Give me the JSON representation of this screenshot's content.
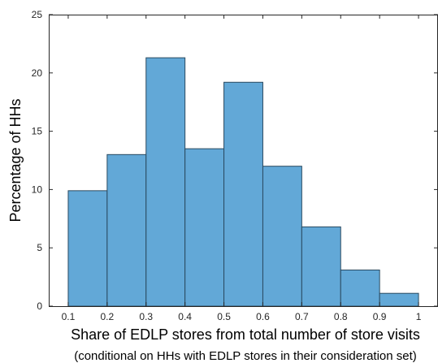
{
  "chart_data": {
    "type": "bar",
    "subtype": "histogram",
    "bin_edges": [
      0.1,
      0.2,
      0.3,
      0.4,
      0.5,
      0.6,
      0.7,
      0.8,
      0.9,
      1.0
    ],
    "values": [
      9.9,
      13.0,
      21.3,
      13.5,
      19.2,
      12.0,
      6.8,
      3.1,
      1.1
    ],
    "xlim": [
      0.05,
      1.05
    ],
    "ylim": [
      0,
      25
    ],
    "xticks": [
      "0.1",
      "0.2",
      "0.3",
      "0.4",
      "0.5",
      "0.6",
      "0.7",
      "0.8",
      "0.9",
      "1"
    ],
    "yticks": [
      "0",
      "5",
      "10",
      "15",
      "20",
      "25"
    ],
    "ylabel": "Percentage of HHs",
    "xlabel": "Share of EDLP stores from total number of store visits",
    "xlabel_sub": "(conditional on HHs with EDLP stores in their consideration set)",
    "bar_color": "#62a8d7",
    "bar_edge_color": "#2a4a60",
    "grid": false,
    "box": true
  }
}
